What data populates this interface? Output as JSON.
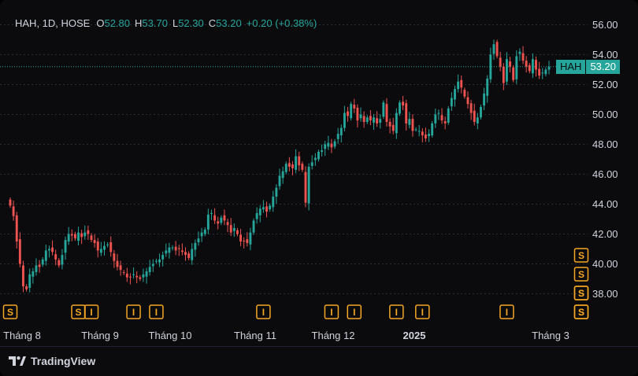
{
  "legend": {
    "symbol": "HAH, 1D, HOSE",
    "o_label": "O",
    "o_value": "52.80",
    "h_label": "H",
    "h_value": "53.70",
    "l_label": "L",
    "l_value": "52.30",
    "c_label": "C",
    "c_value": "53.20",
    "change": "+0.20 (+0.38%)"
  },
  "price_tag": {
    "symbol": "HAH",
    "value": "53.20"
  },
  "branding": {
    "name": "TradingView"
  },
  "colors": {
    "up": "#26a69a",
    "down": "#ef5350",
    "marker": "#f5a623",
    "grid": "#2a2e39"
  },
  "chart_data": {
    "type": "candlestick",
    "ylim": [
      37,
      57
    ],
    "y_ticks": [
      "38.00",
      "40.00",
      "42.00",
      "44.00",
      "46.00",
      "48.00",
      "50.00",
      "52.00",
      "54.00",
      "56.00"
    ],
    "x_tick_labels": [
      "Tháng 8",
      "Tháng 9",
      "Tháng 10",
      "Tháng 11",
      "Tháng 12",
      "2025",
      "Tháng 3"
    ],
    "grid": true,
    "last_price": 53.2,
    "closes": [
      43.9,
      43.2,
      41.5,
      40.0,
      38.5,
      38.3,
      39.3,
      39.5,
      39.9,
      39.8,
      40.3,
      40.9,
      41.0,
      40.8,
      40.3,
      39.9,
      40.6,
      41.6,
      42.0,
      41.9,
      41.7,
      42.1,
      41.8,
      42.1,
      42.0,
      41.6,
      41.4,
      40.9,
      41.0,
      41.2,
      41.3,
      40.8,
      40.2,
      39.8,
      39.6,
      39.4,
      39.1,
      39.1,
      39.3,
      39.1,
      39.0,
      39.3,
      39.5,
      39.8,
      40.0,
      40.2,
      40.3,
      40.6,
      40.9,
      41.1,
      41.1,
      40.9,
      41.0,
      40.8,
      40.6,
      40.4,
      41.0,
      41.4,
      41.7,
      42.1,
      42.3,
      43.3,
      43.4,
      42.9,
      42.7,
      43.1,
      42.9,
      42.6,
      42.1,
      42.4,
      42.0,
      41.5,
      41.5,
      41.4,
      42.1,
      42.9,
      43.4,
      43.7,
      43.8,
      43.5,
      43.9,
      44.5,
      45.1,
      45.9,
      46.2,
      46.7,
      46.5,
      46.4,
      47.2,
      46.6,
      46.3,
      44.1,
      46.5,
      46.8,
      47.1,
      47.5,
      47.6,
      48.0,
      48.1,
      47.8,
      48.2,
      48.7,
      49.1,
      50.1,
      49.9,
      50.7,
      50.4,
      49.6,
      50.0,
      49.5,
      49.8,
      49.6,
      49.8,
      49.4,
      49.7,
      50.8,
      49.5,
      49.2,
      48.9,
      50.1,
      50.8,
      50.6,
      49.4,
      49.7,
      48.9,
      49.0,
      48.9,
      48.6,
      48.4,
      48.7,
      49.4,
      50.0,
      50.1,
      49.6,
      49.4,
      50.4,
      51.1,
      51.7,
      52.2,
      51.8,
      51.2,
      50.7,
      50.1,
      49.5,
      49.8,
      50.5,
      51.4,
      52.4,
      54.0,
      54.7,
      53.9,
      53.2,
      52.1,
      53.7,
      53.2,
      52.3,
      53.9,
      54.2,
      53.6,
      53.2,
      52.9,
      53.7,
      53.0,
      52.6,
      52.8,
      53.0,
      53.2
    ],
    "signal_markers": [
      {
        "label": "S",
        "x_index": 0
      },
      {
        "label": "S",
        "x_index": 21
      },
      {
        "label": "I",
        "x_index": 25
      },
      {
        "label": "I",
        "x_index": 38
      },
      {
        "label": "I",
        "x_index": 45
      },
      {
        "label": "I",
        "x_index": 78
      },
      {
        "label": "I",
        "x_index": 99
      },
      {
        "label": "I",
        "x_index": 106
      },
      {
        "label": "I",
        "x_index": 119
      },
      {
        "label": "I",
        "x_index": 127
      },
      {
        "label": "I",
        "x_index": 153
      },
      {
        "label": "S",
        "x_index": 176
      },
      {
        "label": "S",
        "x_index": 176,
        "stack": 1
      },
      {
        "label": "S",
        "x_index": 197
      },
      {
        "label": "S",
        "x_index": 197,
        "stack": 1
      },
      {
        "label": "S",
        "x_index": 197,
        "stack": 2
      },
      {
        "label": "S",
        "x_index": 197,
        "stack": 3
      }
    ]
  }
}
